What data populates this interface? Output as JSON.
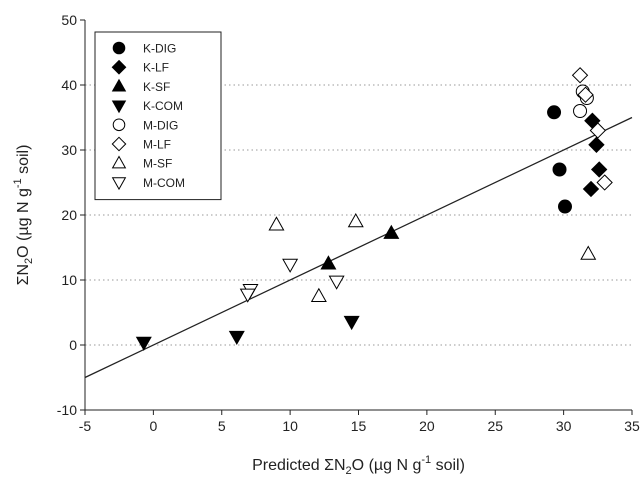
{
  "chart_data": {
    "type": "scatter",
    "xlabel": {
      "pre": "Predicted ΣN",
      "sub": "2",
      "post": "O (µg N g",
      "sup": "-1",
      "tail": " soil)"
    },
    "ylabel": {
      "pre": "ΣN",
      "sub": "2",
      "post": "O (µg N g",
      "sup": "-1",
      "tail": " soil)"
    },
    "xlim": [
      -5,
      35
    ],
    "ylim": [
      -10,
      50
    ],
    "xticks": [
      -5,
      0,
      5,
      10,
      15,
      20,
      25,
      30,
      35
    ],
    "yticks": [
      -10,
      0,
      10,
      20,
      30,
      40,
      50
    ],
    "grid": "horizontal dotted",
    "legend_position": "top-left",
    "fit_line": {
      "x": [
        -5,
        35
      ],
      "y": [
        -5,
        35
      ]
    },
    "series": [
      {
        "name": "K-DIG",
        "marker": "circle",
        "filled": true,
        "points": [
          [
            29.3,
            35.8
          ],
          [
            29.7,
            27.0
          ],
          [
            30.1,
            21.3
          ]
        ]
      },
      {
        "name": "K-LF",
        "marker": "diamond",
        "filled": true,
        "points": [
          [
            32.1,
            34.5
          ],
          [
            32.4,
            30.8
          ],
          [
            32.6,
            27.0
          ],
          [
            32.0,
            24.0
          ]
        ]
      },
      {
        "name": "K-SF",
        "marker": "triangle-up",
        "filled": true,
        "points": [
          [
            12.8,
            12.5
          ],
          [
            17.4,
            17.2
          ]
        ]
      },
      {
        "name": "K-COM",
        "marker": "triangle-down",
        "filled": true,
        "points": [
          [
            -0.7,
            0.4
          ],
          [
            6.1,
            1.3
          ],
          [
            14.5,
            3.6
          ]
        ]
      },
      {
        "name": "M-DIG",
        "marker": "circle",
        "filled": false,
        "points": [
          [
            31.4,
            39.0
          ],
          [
            31.7,
            38.0
          ],
          [
            31.2,
            36.0
          ]
        ]
      },
      {
        "name": "M-LF",
        "marker": "diamond",
        "filled": false,
        "points": [
          [
            31.2,
            41.5
          ],
          [
            31.6,
            38.5
          ],
          [
            32.5,
            33.0
          ],
          [
            33.0,
            25.0
          ]
        ]
      },
      {
        "name": "M-SF",
        "marker": "triangle-up",
        "filled": false,
        "points": [
          [
            9.0,
            18.5
          ],
          [
            14.8,
            19.0
          ],
          [
            12.1,
            7.5
          ],
          [
            31.8,
            14.0
          ]
        ]
      },
      {
        "name": "M-COM",
        "marker": "triangle-down",
        "filled": false,
        "points": [
          [
            7.1,
            8.5
          ],
          [
            6.9,
            7.8
          ],
          [
            10.0,
            12.4
          ],
          [
            13.4,
            9.8
          ]
        ]
      }
    ]
  }
}
